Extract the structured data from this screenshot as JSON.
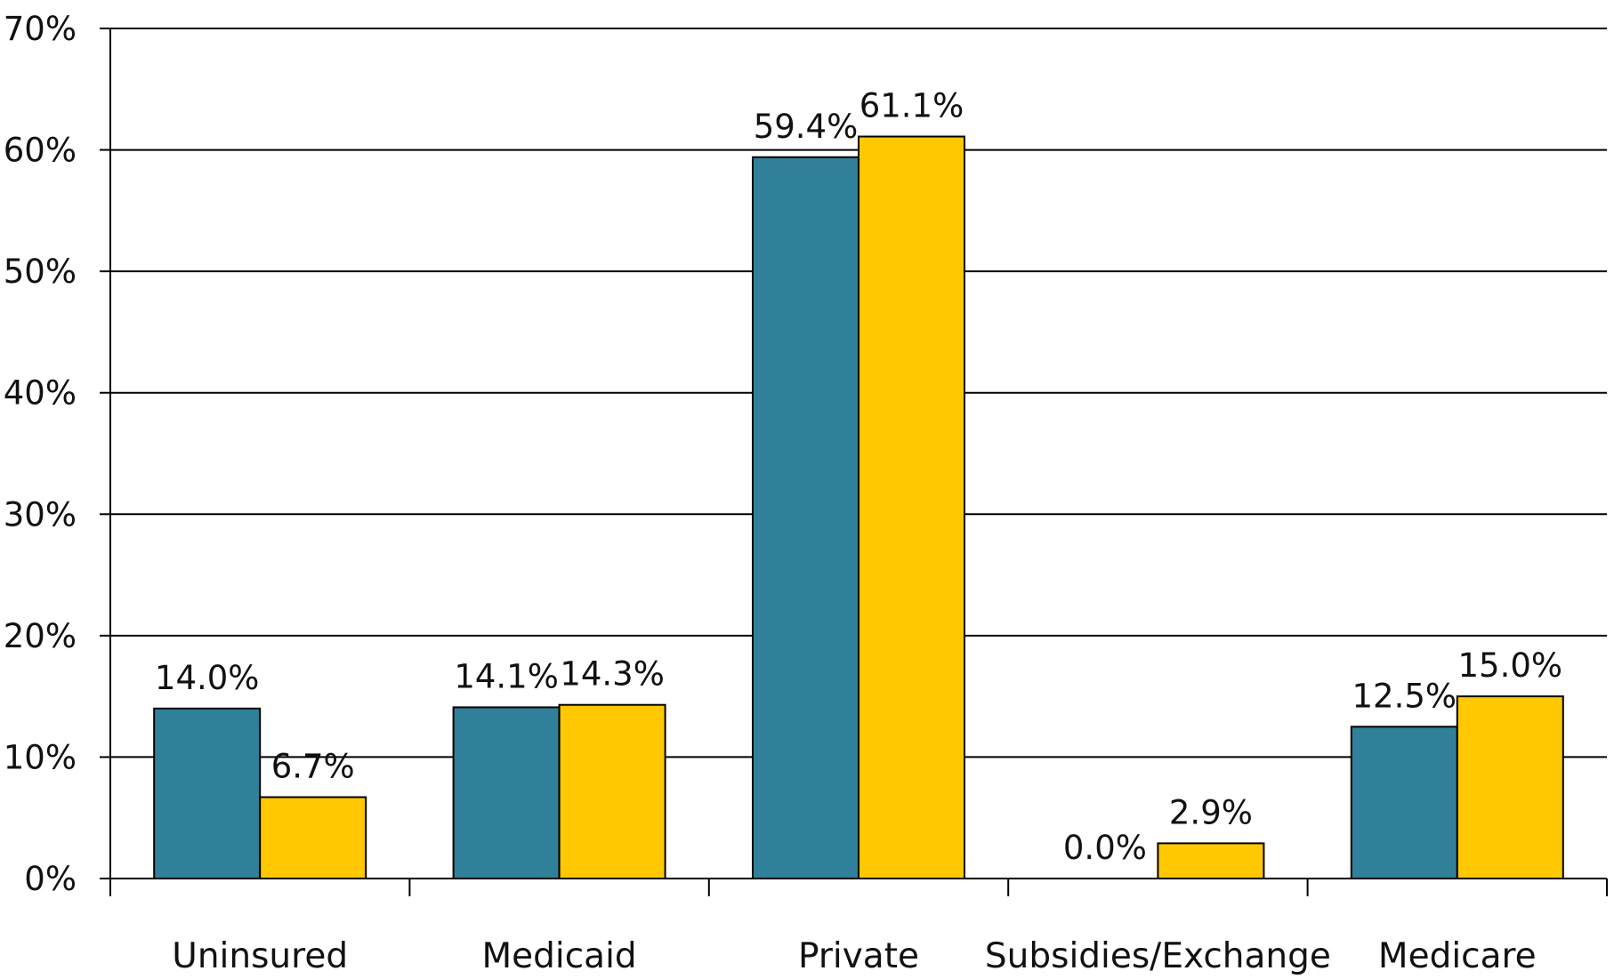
{
  "chart_data": {
    "type": "bar",
    "categories": [
      "Uninsured",
      "Medicaid",
      "Private",
      "Subsidies/Exchange",
      "Medicare"
    ],
    "series": [
      {
        "values": [
          14.0,
          14.1,
          59.4,
          0.0,
          12.5
        ],
        "labels": [
          "14.0%",
          "14.1%",
          "59.4%",
          "0.0%",
          "12.5%"
        ],
        "color": "#31809A"
      },
      {
        "values": [
          6.7,
          14.3,
          61.1,
          2.9,
          15.0
        ],
        "labels": [
          "6.7%",
          "14.3%",
          "61.1%",
          "2.9%",
          "15.0%"
        ],
        "color": "#FFC800"
      }
    ],
    "ylim": [
      0,
      70
    ],
    "yticks": [
      0,
      10,
      20,
      30,
      40,
      50,
      60,
      70
    ],
    "ytick_labels": [
      "0%",
      "10%",
      "20%",
      "30%",
      "40%",
      "50%",
      "60%",
      "70%"
    ],
    "xlabel": "",
    "ylabel": "",
    "title": "",
    "grid": true,
    "legend": false
  }
}
